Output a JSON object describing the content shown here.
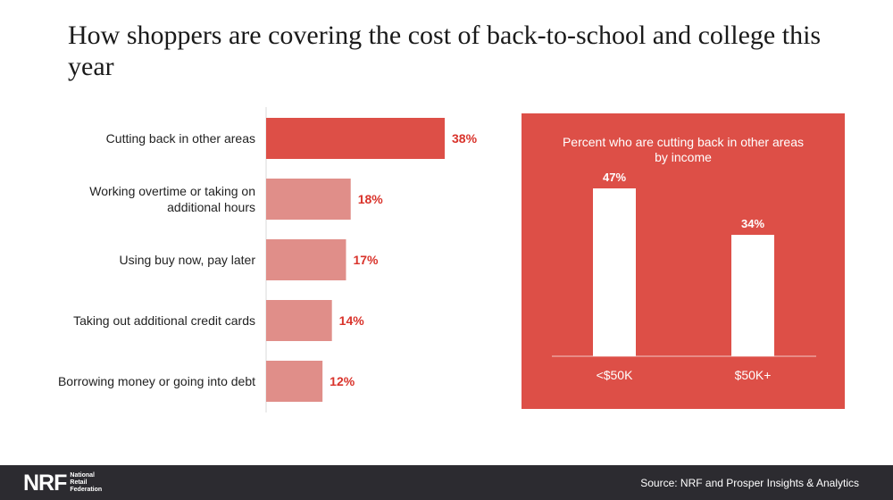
{
  "title": "How shoppers are covering the cost of back-to-school and college this year",
  "colors": {
    "primary_bar": "#dd4f47",
    "secondary_bar": "#e08e89",
    "value_label": "#d9332b",
    "panel_bg": "#dd4f47",
    "footer_bg": "#2c2b30"
  },
  "chart_data": [
    {
      "type": "bar",
      "orientation": "horizontal",
      "categories": [
        [
          "Cutting back in other areas"
        ],
        [
          "Working overtime or taking on",
          "additional hours"
        ],
        [
          "Using buy now, pay later"
        ],
        [
          "Taking out additional credit cards"
        ],
        [
          "Borrowing money or going into debt"
        ]
      ],
      "values": [
        38,
        18,
        17,
        14,
        12
      ],
      "value_labels": [
        "38%",
        "18%",
        "17%",
        "14%",
        "12%"
      ],
      "xlim": [
        0,
        40
      ],
      "grid": false,
      "legend": "none"
    },
    {
      "type": "bar",
      "orientation": "vertical",
      "title": "Percent who are cutting back in other areas by income",
      "title_lines": [
        "Percent who are cutting back in other areas",
        "by income"
      ],
      "categories": [
        "<$50K",
        "$50K+"
      ],
      "values": [
        47,
        34
      ],
      "value_labels": [
        "47%",
        "34%"
      ],
      "ylim": [
        0,
        47
      ],
      "grid": false,
      "legend": "none"
    }
  ],
  "footer": {
    "logo_mark": "NRF",
    "logo_lines": [
      "National",
      "Retail",
      "Federation"
    ],
    "source": "Source: NRF and Prosper Insights & Analytics"
  }
}
